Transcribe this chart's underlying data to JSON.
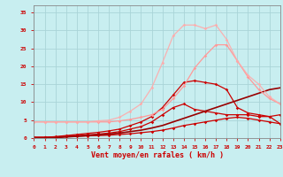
{
  "background_color": "#c8eef0",
  "grid_color": "#aad4d8",
  "xlabel": "Vent moyen/en rafales ( km/h )",
  "xlim": [
    0,
    23
  ],
  "ylim": [
    0,
    37
  ],
  "xticks": [
    0,
    1,
    2,
    3,
    4,
    5,
    6,
    7,
    8,
    9,
    10,
    11,
    12,
    13,
    14,
    15,
    16,
    17,
    18,
    19,
    20,
    21,
    22,
    23
  ],
  "yticks": [
    0,
    5,
    10,
    15,
    20,
    25,
    30,
    35
  ],
  "lines": [
    {
      "x": [
        0,
        1,
        2,
        3,
        4,
        5,
        6,
        7,
        8,
        9,
        10,
        11,
        12,
        13,
        14,
        15,
        16,
        17,
        18,
        19,
        20,
        21,
        22,
        23
      ],
      "y": [
        0.2,
        0.2,
        0.3,
        0.4,
        0.5,
        0.6,
        0.7,
        0.8,
        1.0,
        1.2,
        1.5,
        1.8,
        2.2,
        2.8,
        3.5,
        4.0,
        4.5,
        5.0,
        5.5,
        5.8,
        5.5,
        5.0,
        4.5,
        4.0
      ],
      "color": "#cc0000",
      "linewidth": 0.9,
      "marker": "D",
      "markersize": 1.8,
      "alpha": 1.0
    },
    {
      "x": [
        0,
        1,
        2,
        3,
        4,
        5,
        6,
        7,
        8,
        9,
        10,
        11,
        12,
        13,
        14,
        15,
        16,
        17,
        18,
        19,
        20,
        21,
        22,
        23
      ],
      "y": [
        0.2,
        0.2,
        0.3,
        0.5,
        0.7,
        0.9,
        1.1,
        1.4,
        1.8,
        2.5,
        3.2,
        4.5,
        6.5,
        8.5,
        9.5,
        8.0,
        7.5,
        7.0,
        6.5,
        6.5,
        6.5,
        6.0,
        6.0,
        6.5
      ],
      "color": "#cc0000",
      "linewidth": 0.9,
      "marker": "D",
      "markersize": 1.8,
      "alpha": 1.0
    },
    {
      "x": [
        0,
        1,
        2,
        3,
        4,
        5,
        6,
        7,
        8,
        9,
        10,
        11,
        12,
        13,
        14,
        15,
        16,
        17,
        18,
        19,
        20,
        21,
        22,
        23
      ],
      "y": [
        0.2,
        0.2,
        0.4,
        0.7,
        1.0,
        1.3,
        1.6,
        2.0,
        2.5,
        3.5,
        4.5,
        6.0,
        8.5,
        12.0,
        15.5,
        16.0,
        15.5,
        15.0,
        13.5,
        8.5,
        7.0,
        6.5,
        6.0,
        4.0
      ],
      "color": "#cc0000",
      "linewidth": 0.9,
      "marker": "D",
      "markersize": 1.8,
      "alpha": 1.0
    },
    {
      "x": [
        0,
        1,
        2,
        3,
        4,
        5,
        6,
        7,
        8,
        9,
        10,
        11,
        12,
        13,
        14,
        15,
        16,
        17,
        18,
        19,
        20,
        21,
        22,
        23
      ],
      "y": [
        0.0,
        0.0,
        0.1,
        0.3,
        0.5,
        0.7,
        0.9,
        1.1,
        1.4,
        1.8,
        2.2,
        2.8,
        3.5,
        4.5,
        5.5,
        6.5,
        7.5,
        8.5,
        9.5,
        10.5,
        11.5,
        12.5,
        13.5,
        14.0
      ],
      "color": "#990000",
      "linewidth": 1.2,
      "marker": null,
      "markersize": 0,
      "alpha": 1.0
    },
    {
      "x": [
        0,
        1,
        2,
        3,
        4,
        5,
        6,
        7,
        8,
        9,
        10,
        11,
        12,
        13,
        14,
        15,
        16,
        17,
        18,
        19,
        20,
        21,
        22,
        23
      ],
      "y": [
        4.5,
        4.5,
        4.5,
        4.5,
        4.5,
        4.5,
        4.5,
        4.5,
        4.8,
        5.2,
        5.8,
        6.5,
        8.0,
        11.0,
        14.5,
        19.5,
        23.0,
        26.0,
        26.0,
        21.5,
        17.0,
        13.5,
        11.0,
        9.5
      ],
      "color": "#ff9999",
      "linewidth": 0.9,
      "marker": "D",
      "markersize": 1.8,
      "alpha": 1.0
    },
    {
      "x": [
        0,
        1,
        2,
        3,
        4,
        5,
        6,
        7,
        8,
        9,
        10,
        11,
        12,
        13,
        14,
        15,
        16,
        17,
        18,
        19,
        20,
        21,
        22,
        23
      ],
      "y": [
        4.5,
        4.5,
        4.5,
        4.5,
        4.5,
        4.5,
        4.8,
        5.0,
        5.8,
        7.5,
        9.5,
        14.0,
        21.0,
        28.5,
        31.5,
        31.5,
        30.5,
        31.5,
        27.5,
        21.5,
        17.5,
        15.0,
        11.5,
        9.5
      ],
      "color": "#ffaaaa",
      "linewidth": 0.9,
      "marker": "D",
      "markersize": 1.8,
      "alpha": 0.9
    }
  ],
  "tick_color": "#cc0000",
  "label_color": "#cc0000",
  "axis_color": "#888888"
}
